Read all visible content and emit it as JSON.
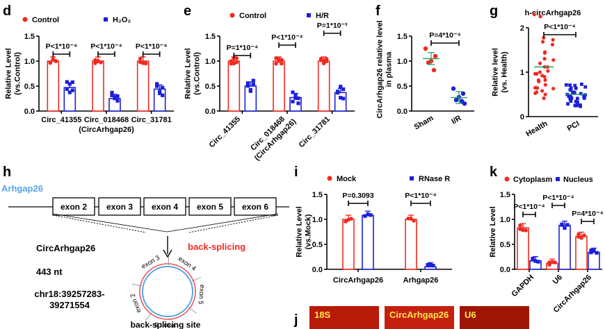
{
  "colors": {
    "red": "#f02a20",
    "blue": "#1c20d8",
    "green": "#1aa05a",
    "light_blue": "#5aa4e8"
  },
  "panel_letters": {
    "d": "d",
    "e": "e",
    "f": "f",
    "g": "g",
    "h": "h",
    "i": "i",
    "j": "j",
    "k": "k"
  },
  "panel_d": {
    "legend": [
      "Control",
      "H₂O₂"
    ],
    "ylabel": "Relative Level\n(vs.Control)",
    "pvals": [
      "P<1*10⁻⁴",
      "P<1*10⁻⁴",
      "P<1*10⁻⁴"
    ],
    "xlabels": [
      "Circ_41355",
      "Circ_018468\n(CircArhgap26)",
      "Circ_31781"
    ]
  },
  "panel_e": {
    "legend": [
      "Control",
      "H/R"
    ],
    "ylabel": "Relative Level\n(vs.Control)",
    "pvals": [
      "P=1*10⁻⁴",
      "P<1*10⁻⁴",
      "P=1*10⁻³"
    ],
    "xlabels": [
      "Circ_41355",
      "Circ_018468\n(CircArhgap26)",
      "Circ_31781"
    ]
  },
  "panel_f": {
    "ylabel": "CircArhgap26 relative level\nin plasma",
    "pval": "P=4*10⁻⁴",
    "xlabels": [
      "Sham",
      "I/R"
    ]
  },
  "panel_g": {
    "title": "h-circArhgap26",
    "ylabel": "Relative level\n(vs. Health)",
    "pval": "P<1*10⁻⁴",
    "xlabels": [
      "Health",
      "PCI"
    ]
  },
  "panel_h": {
    "gene": "Arhgap26",
    "exons": [
      "exon 2",
      "exon 3",
      "exon 4",
      "exon 5",
      "exon 6"
    ],
    "circ_name": "CircArhgap26",
    "length": "443 nt",
    "location": "chr18:39257283-\n39271554",
    "process": "back-splicing",
    "site_label": "back-splicing site",
    "ring_exons": [
      "exon 3",
      "exon 4",
      "exon 5",
      "exon 6",
      "exon 2"
    ]
  },
  "panel_i": {
    "legend": [
      "Mock",
      "RNase R"
    ],
    "ylabel": "Relative Level\n(vs.Mock)",
    "pvals": [
      "P=0.3093",
      "P<1*10⁻⁴"
    ],
    "xlabels": [
      "CircArhgap26",
      "Arhgap26"
    ]
  },
  "panel_j": {
    "labels": [
      "18S",
      "CircArhgap26",
      "U6"
    ]
  },
  "panel_k": {
    "legend": [
      "Cytoplasm",
      "Nucleus"
    ],
    "ylabel": "Relative Level",
    "pvals": [
      "P<1*10⁻⁴",
      "P<1*10⁻⁴",
      "P=4*10⁻⁴"
    ],
    "xlabels": [
      "GAPDH",
      "U6",
      "CircArhgap26"
    ]
  },
  "chart_data": [
    {
      "panel": "d",
      "type": "bar",
      "categories": [
        "Circ_41355",
        "Circ_018468 (CircArhgap26)",
        "Circ_31781"
      ],
      "series": [
        {
          "name": "Control",
          "values": [
            1.0,
            1.0,
            1.0
          ]
        },
        {
          "name": "H₂O₂",
          "values": [
            0.47,
            0.25,
            0.44
          ]
        }
      ],
      "ylim": [
        0,
        1.5
      ],
      "yticks": [
        0.0,
        0.5,
        1.0,
        1.5
      ]
    },
    {
      "panel": "e",
      "type": "bar",
      "categories": [
        "Circ_41355",
        "Circ_018468 (CircArhgap26)",
        "Circ_31781"
      ],
      "series": [
        {
          "name": "Control",
          "values": [
            1.0,
            1.0,
            1.0
          ]
        },
        {
          "name": "H/R",
          "values": [
            0.5,
            0.27,
            0.37
          ]
        }
      ],
      "ylim": [
        0,
        1.5
      ],
      "yticks": [
        0.0,
        0.5,
        1.0,
        1.5
      ]
    },
    {
      "panel": "f",
      "type": "scatter",
      "categories": [
        "Sham",
        "I/R"
      ],
      "series": [
        {
          "values": [
            1.05,
            0.27
          ]
        }
      ],
      "points": [
        [
          1.25,
          1.1,
          0.97,
          0.82,
          1.0
        ],
        [
          0.45,
          0.35,
          0.22,
          0.2,
          0.28,
          0.15
        ]
      ],
      "ylim": [
        0,
        1.5
      ],
      "yticks": [
        0.0,
        0.5,
        1.0,
        1.5
      ]
    },
    {
      "panel": "g",
      "type": "scatter",
      "categories": [
        "Health",
        "PCI"
      ],
      "series": [
        {
          "values": [
            1.12,
            0.5
          ]
        }
      ],
      "ylim": [
        0,
        2.0
      ],
      "yticks": [
        0,
        1,
        2
      ]
    },
    {
      "panel": "i",
      "type": "bar",
      "categories": [
        "CircArhgap26",
        "Arhgap26"
      ],
      "series": [
        {
          "name": "Mock",
          "values": [
            1.0,
            1.0
          ]
        },
        {
          "name": "RNase R",
          "values": [
            1.08,
            0.05
          ]
        }
      ],
      "ylim": [
        0,
        1.5
      ],
      "yticks": [
        0.0,
        0.5,
        1.0,
        1.5
      ]
    },
    {
      "panel": "k",
      "type": "bar",
      "categories": [
        "GAPDH",
        "U6",
        "CircArhgap26"
      ],
      "series": [
        {
          "name": "Cytoplasm",
          "values": [
            0.83,
            0.12,
            0.66
          ]
        },
        {
          "name": "Nucleus",
          "values": [
            0.17,
            0.88,
            0.34
          ]
        }
      ],
      "ylim": [
        0,
        1.5
      ],
      "yticks": [
        0.0,
        0.5,
        1.0,
        1.5
      ]
    }
  ]
}
